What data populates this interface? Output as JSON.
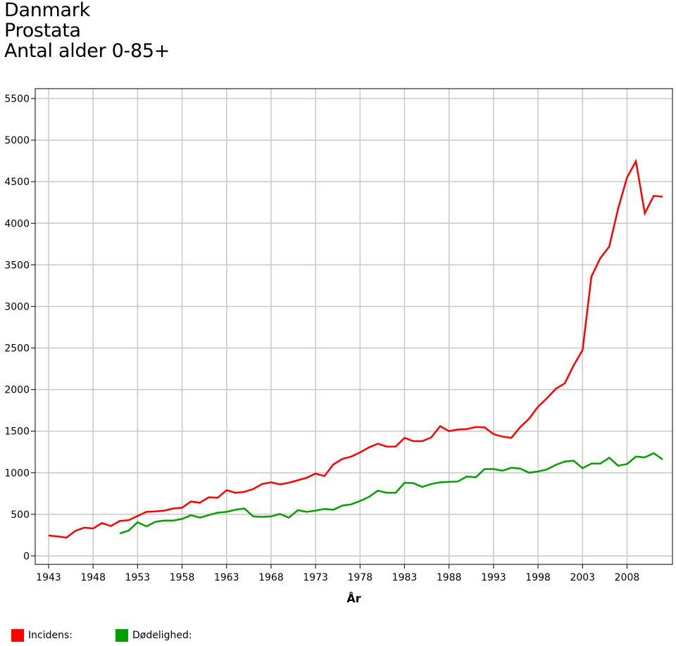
{
  "chart_data": {
    "type": "line",
    "title_lines": [
      "Danmark",
      "Prostata",
      "Antal alder 0-85+"
    ],
    "xlabel": "År",
    "ylabel": "",
    "xlim": [
      1943,
      2012
    ],
    "ylim": [
      0,
      5500
    ],
    "xticks": [
      1943,
      1948,
      1953,
      1958,
      1963,
      1968,
      1973,
      1978,
      1983,
      1988,
      1993,
      1998,
      2003,
      2008
    ],
    "yticks": [
      0,
      500,
      1000,
      1500,
      2000,
      2500,
      3000,
      3500,
      4000,
      4500,
      5000,
      5500
    ],
    "grid": true,
    "legend_position": "bottom-left",
    "series": [
      {
        "name": "Incidens:",
        "color": "#ff0000",
        "x": [
          1943,
          1944,
          1945,
          1946,
          1947,
          1948,
          1949,
          1950,
          1951,
          1952,
          1953,
          1954,
          1955,
          1956,
          1957,
          1958,
          1959,
          1960,
          1961,
          1962,
          1963,
          1964,
          1965,
          1966,
          1967,
          1968,
          1969,
          1970,
          1971,
          1972,
          1973,
          1974,
          1975,
          1976,
          1977,
          1978,
          1979,
          1980,
          1981,
          1982,
          1983,
          1984,
          1985,
          1986,
          1987,
          1988,
          1989,
          1990,
          1991,
          1992,
          1993,
          1994,
          1995,
          1996,
          1997,
          1998,
          1999,
          2000,
          2001,
          2002,
          2003,
          2004,
          2005,
          2006,
          2007,
          2008,
          2009,
          2010,
          2011,
          2012
        ],
        "values": [
          245,
          235,
          220,
          300,
          340,
          330,
          395,
          360,
          420,
          430,
          480,
          530,
          535,
          545,
          570,
          580,
          655,
          640,
          705,
          700,
          790,
          760,
          770,
          805,
          865,
          885,
          860,
          880,
          910,
          940,
          990,
          960,
          1100,
          1165,
          1195,
          1245,
          1305,
          1350,
          1315,
          1315,
          1420,
          1380,
          1380,
          1425,
          1560,
          1500,
          1520,
          1525,
          1550,
          1545,
          1465,
          1435,
          1420,
          1550,
          1650,
          1795,
          1895,
          2010,
          2075,
          2290,
          2475,
          3360,
          3580,
          3720,
          4175,
          4550,
          4745,
          4120,
          4330,
          4320
        ]
      },
      {
        "name": "Dødelighed:",
        "color": "#00a000",
        "x": [
          1951,
          1952,
          1953,
          1954,
          1955,
          1956,
          1957,
          1958,
          1959,
          1960,
          1961,
          1962,
          1963,
          1964,
          1965,
          1966,
          1967,
          1968,
          1969,
          1970,
          1971,
          1972,
          1973,
          1974,
          1975,
          1976,
          1977,
          1978,
          1979,
          1980,
          1981,
          1982,
          1983,
          1984,
          1985,
          1986,
          1987,
          1988,
          1989,
          1990,
          1991,
          1992,
          1993,
          1994,
          1995,
          1996,
          1997,
          1998,
          1999,
          2000,
          2001,
          2002,
          2003,
          2004,
          2005,
          2006,
          2007,
          2008,
          2009,
          2010,
          2011,
          2012
        ],
        "values": [
          270,
          305,
          405,
          355,
          410,
          425,
          425,
          445,
          490,
          460,
          490,
          520,
          530,
          555,
          570,
          475,
          470,
          475,
          505,
          460,
          550,
          530,
          545,
          565,
          555,
          605,
          620,
          660,
          710,
          785,
          760,
          760,
          880,
          875,
          830,
          865,
          885,
          890,
          895,
          955,
          945,
          1045,
          1045,
          1025,
          1060,
          1050,
          1000,
          1015,
          1040,
          1095,
          1135,
          1145,
          1055,
          1110,
          1110,
          1180,
          1085,
          1105,
          1195,
          1185,
          1235,
          1160
        ]
      }
    ]
  }
}
